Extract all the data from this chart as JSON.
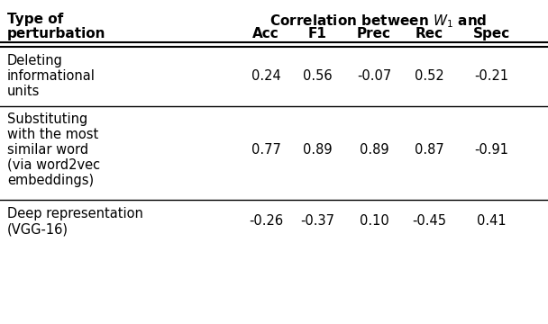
{
  "col_headers": [
    "Acc",
    "F1",
    "Prec",
    "Rec",
    "Spec"
  ],
  "rows": [
    {
      "label": [
        "Deleting",
        "informational",
        "units"
      ],
      "values": [
        "0.24",
        "0.56",
        "-0.07",
        "0.52",
        "-0.21"
      ],
      "val_line": 1
    },
    {
      "label": [
        "Substituting",
        "with the most",
        "similar word",
        "(via word2vec",
        "embeddings)"
      ],
      "values": [
        "0.77",
        "0.89",
        "0.89",
        "0.87",
        "-0.91"
      ],
      "val_line": 2
    },
    {
      "label": [
        "Deep representation",
        "(VGG-16)"
      ],
      "values": [
        "-0.26",
        "-0.37",
        "0.10",
        "-0.45",
        "0.41"
      ],
      "val_line": 0
    }
  ],
  "background_color": "#ffffff",
  "text_color": "#000000",
  "fontsize": 10.5,
  "bold_fontsize": 11
}
